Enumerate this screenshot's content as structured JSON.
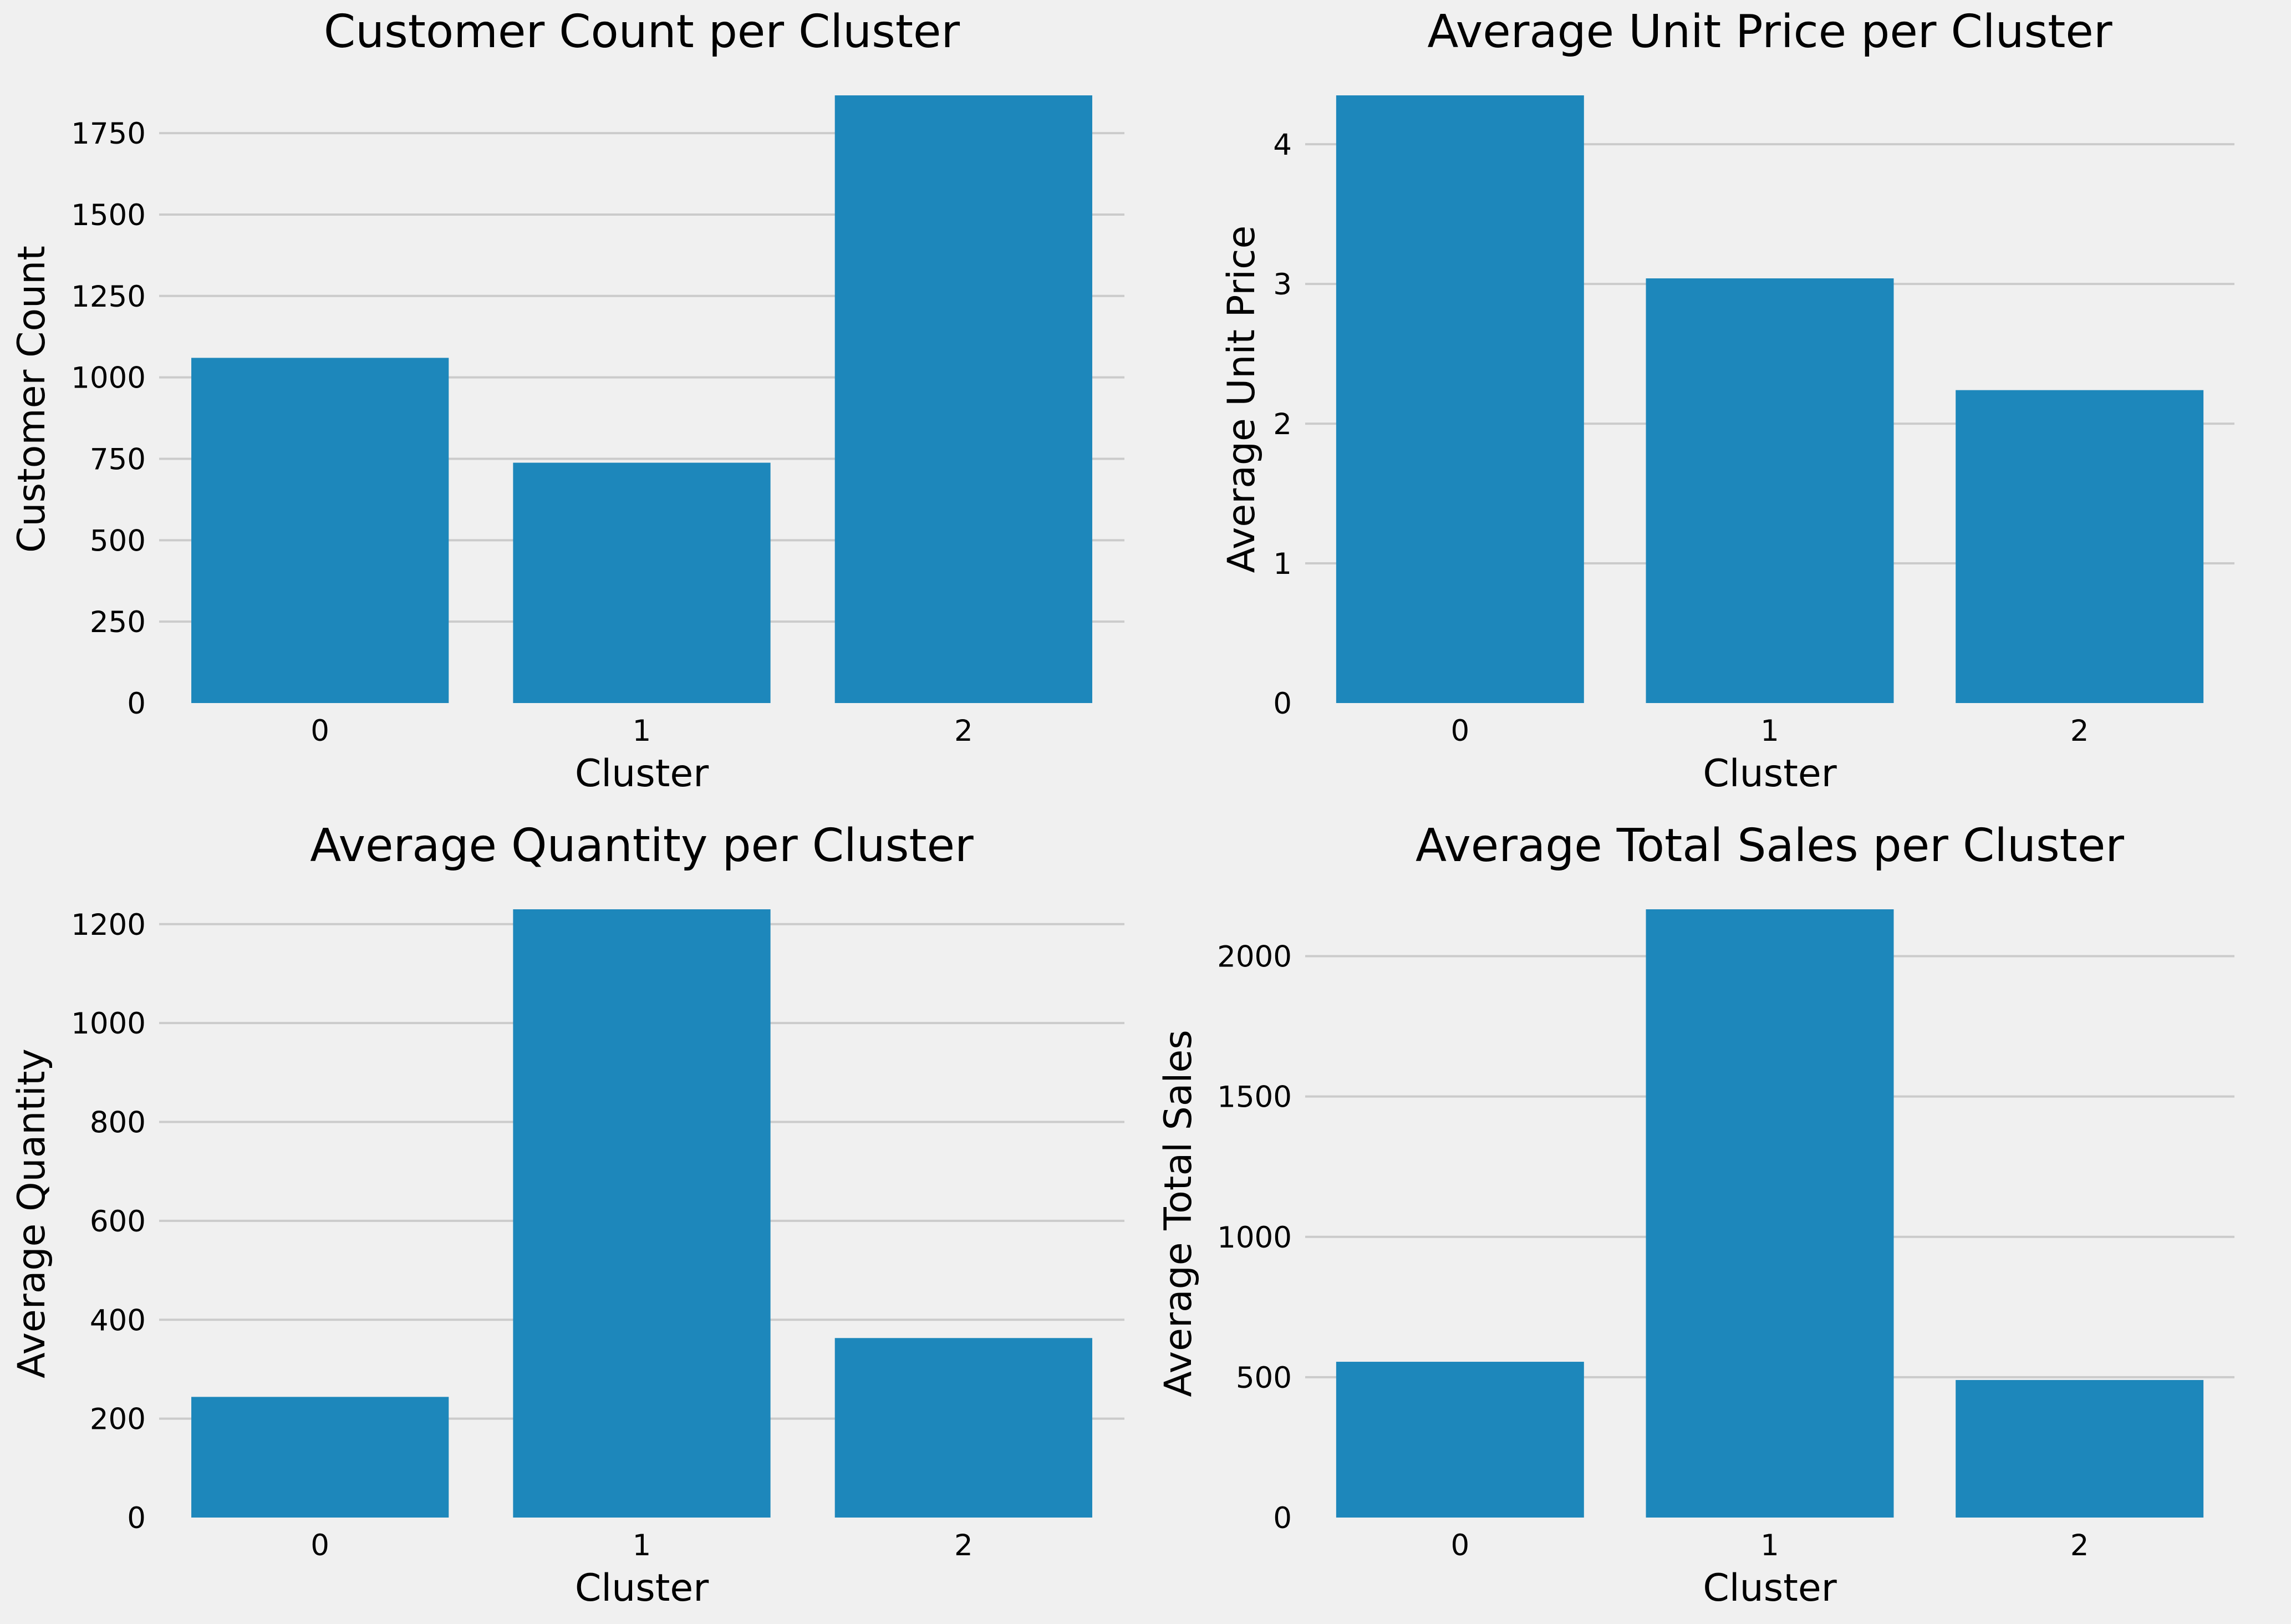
{
  "colors": {
    "background": "#f0f0f0",
    "bar": "#1d87bb",
    "grid": "#cbcbcb"
  },
  "chart_data": [
    {
      "type": "bar",
      "title": "Customer Count per Cluster",
      "xlabel": "Cluster",
      "ylabel": "Customer Count",
      "categories": [
        "0",
        "1",
        "2"
      ],
      "values": [
        1060,
        738,
        1866
      ],
      "ylim": [
        0,
        1866
      ],
      "yticks": [
        0,
        250,
        500,
        750,
        1000,
        1250,
        1500,
        1750
      ],
      "grid": "horizontal"
    },
    {
      "type": "bar",
      "title": "Average Unit Price per Cluster",
      "xlabel": "Cluster",
      "ylabel": "Average Unit Price",
      "categories": [
        "0",
        "1",
        "2"
      ],
      "values": [
        4.35,
        3.04,
        2.24
      ],
      "ylim": [
        0,
        4.35
      ],
      "yticks": [
        0,
        1,
        2,
        3,
        4
      ],
      "grid": "horizontal"
    },
    {
      "type": "bar",
      "title": "Average Quantity per Cluster",
      "xlabel": "Cluster",
      "ylabel": "Average Quantity",
      "categories": [
        "0",
        "1",
        "2"
      ],
      "values": [
        244,
        1230,
        363
      ],
      "ylim": [
        0,
        1230
      ],
      "yticks": [
        0,
        200,
        400,
        600,
        800,
        1000,
        1200
      ],
      "grid": "horizontal"
    },
    {
      "type": "bar",
      "title": "Average Total Sales per Cluster",
      "xlabel": "Cluster",
      "ylabel": "Average Total Sales",
      "categories": [
        "0",
        "1",
        "2"
      ],
      "values": [
        555,
        2167,
        490
      ],
      "ylim": [
        0,
        2167
      ],
      "yticks": [
        0,
        500,
        1000,
        1500,
        2000
      ],
      "grid": "horizontal"
    }
  ]
}
